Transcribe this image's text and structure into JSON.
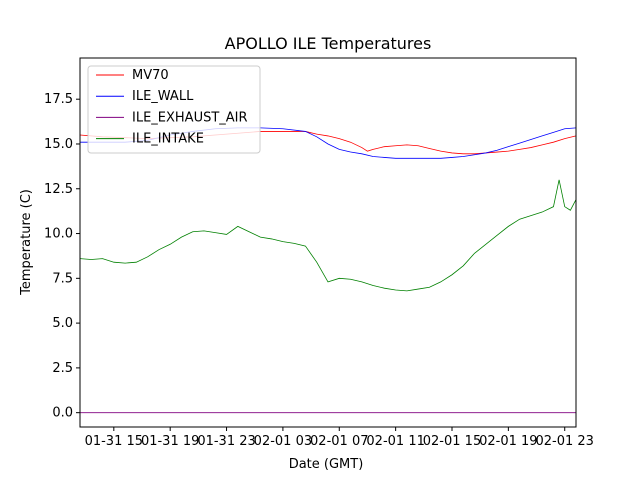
{
  "chart_data": {
    "type": "line",
    "title": "APOLLO ILE Temperatures",
    "xlabel": "Date (GMT)",
    "ylabel": "Temperature (C)",
    "xlim": [
      0,
      88
    ],
    "ylim": [
      -0.8,
      19.8
    ],
    "x_ticks": [
      {
        "value": 6,
        "label": "01-31 15"
      },
      {
        "value": 16,
        "label": "01-31 19"
      },
      {
        "value": 26,
        "label": "01-31 23"
      },
      {
        "value": 36,
        "label": "02-01 03"
      },
      {
        "value": 46,
        "label": "02-01 07"
      },
      {
        "value": 56,
        "label": "02-01 11"
      },
      {
        "value": 66,
        "label": "02-01 15"
      },
      {
        "value": 76,
        "label": "02-01 19"
      },
      {
        "value": 86,
        "label": "02-01 23"
      }
    ],
    "y_ticks": [
      {
        "value": 0.0,
        "label": "0.0"
      },
      {
        "value": 2.5,
        "label": "2.5"
      },
      {
        "value": 5.0,
        "label": "5.0"
      },
      {
        "value": 7.5,
        "label": "7.5"
      },
      {
        "value": 10.0,
        "label": "10.0"
      },
      {
        "value": 12.5,
        "label": "12.5"
      },
      {
        "value": 15.0,
        "label": "15.0"
      },
      {
        "value": 17.5,
        "label": "17.5"
      }
    ],
    "legend_position": "top-left",
    "grid": false,
    "series": [
      {
        "name": "MV70",
        "color": "#ff0000",
        "x": [
          0,
          4,
          8,
          12,
          16,
          20,
          24,
          28,
          32,
          36,
          40,
          42,
          44,
          46,
          48,
          50,
          51,
          52,
          54,
          56,
          58,
          60,
          62,
          64,
          66,
          68,
          70,
          72,
          74,
          76,
          78,
          80,
          82,
          84,
          86,
          88
        ],
        "values": [
          15.5,
          15.4,
          15.35,
          15.3,
          15.35,
          15.4,
          15.5,
          15.6,
          15.7,
          15.7,
          15.7,
          15.55,
          15.45,
          15.3,
          15.1,
          14.8,
          14.6,
          14.7,
          14.85,
          14.9,
          14.95,
          14.9,
          14.75,
          14.6,
          14.5,
          14.45,
          14.45,
          14.5,
          14.55,
          14.6,
          14.7,
          14.8,
          14.95,
          15.1,
          15.3,
          15.45
        ]
      },
      {
        "name": "ILE_WALL",
        "color": "#0000ff",
        "x": [
          0,
          4,
          8,
          12,
          16,
          20,
          24,
          28,
          32,
          36,
          40,
          42,
          44,
          46,
          48,
          50,
          52,
          54,
          56,
          58,
          60,
          62,
          64,
          66,
          68,
          70,
          72,
          74,
          76,
          78,
          80,
          82,
          84,
          86,
          88
        ],
        "values": [
          15.1,
          15.1,
          15.1,
          15.2,
          15.5,
          15.7,
          15.85,
          15.9,
          15.9,
          15.85,
          15.7,
          15.4,
          15.0,
          14.7,
          14.55,
          14.45,
          14.3,
          14.25,
          14.2,
          14.2,
          14.2,
          14.2,
          14.2,
          14.25,
          14.3,
          14.4,
          14.5,
          14.65,
          14.85,
          15.05,
          15.25,
          15.45,
          15.65,
          15.85,
          15.9
        ]
      },
      {
        "name": "ILE_EXHAUST_AIR",
        "color": "#800080",
        "x": [
          0,
          88
        ],
        "values": [
          0.0,
          0.0
        ]
      },
      {
        "name": "ILE_INTAKE",
        "color": "#008000",
        "x": [
          0,
          2,
          4,
          6,
          8,
          10,
          12,
          14,
          16,
          18,
          20,
          22,
          24,
          26,
          28,
          30,
          32,
          34,
          36,
          38,
          40,
          42,
          44,
          46,
          48,
          50,
          52,
          54,
          56,
          58,
          60,
          62,
          64,
          66,
          68,
          70,
          72,
          74,
          76,
          78,
          80,
          82,
          84,
          85,
          86,
          87,
          88
        ],
        "values": [
          8.6,
          8.55,
          8.6,
          8.4,
          8.35,
          8.4,
          8.7,
          9.1,
          9.4,
          9.8,
          10.1,
          10.15,
          10.05,
          9.95,
          10.4,
          10.1,
          9.8,
          9.7,
          9.55,
          9.45,
          9.3,
          8.4,
          7.3,
          7.5,
          7.45,
          7.3,
          7.1,
          6.95,
          6.85,
          6.8,
          6.9,
          7.0,
          7.3,
          7.7,
          8.2,
          8.9,
          9.4,
          9.9,
          10.4,
          10.8,
          11.0,
          11.2,
          11.5,
          13.0,
          11.5,
          11.3,
          11.9
        ]
      }
    ]
  }
}
